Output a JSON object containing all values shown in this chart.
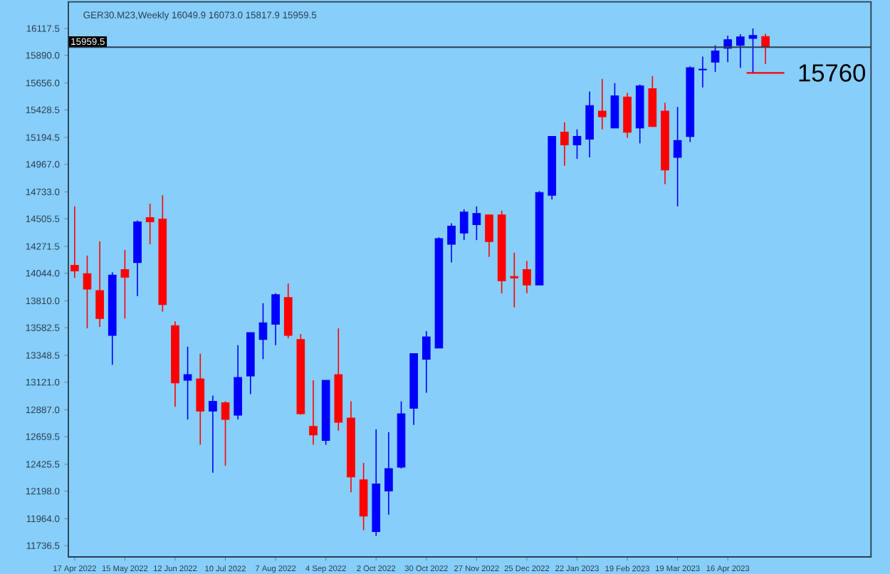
{
  "chart_data": {
    "type": "candlestick",
    "title": "GER30.M23,Weekly  16049.9 16073.0 15817.9 15959.5",
    "categories": [
      "17 Apr 2022",
      null,
      null,
      null,
      "15 May 2022",
      null,
      null,
      null,
      "12 Jun 2022",
      null,
      null,
      null,
      "10 Jul 2022",
      null,
      null,
      null,
      "7 Aug 2022",
      null,
      null,
      null,
      "4 Sep 2022",
      null,
      null,
      null,
      "2 Oct 2022",
      null,
      null,
      null,
      "30 Oct 2022",
      null,
      null,
      null,
      "27 Nov 2022",
      null,
      null,
      null,
      "25 Dec 2022",
      null,
      null,
      null,
      "22 Jan 2023",
      null,
      null,
      null,
      "19 Feb 2023",
      null,
      null,
      null,
      "19 Mar 2023",
      null,
      null,
      null,
      "16 Apr 2023",
      null,
      null,
      null
    ],
    "ohlc": [
      [
        14111,
        14610,
        14004,
        14064
      ],
      [
        14040,
        14194,
        13577,
        13909
      ],
      [
        13897,
        14313,
        13589,
        13660
      ],
      [
        13517,
        14052,
        13268,
        14028
      ],
      [
        14075,
        14242,
        13660,
        14010
      ],
      [
        14135,
        14491,
        13850,
        14479
      ],
      [
        14515,
        14633,
        14289,
        14479
      ],
      [
        14503,
        14705,
        13719,
        13779
      ],
      [
        13600,
        13636,
        12912,
        13114
      ],
      [
        13137,
        13422,
        12805,
        13185
      ],
      [
        13149,
        13363,
        12591,
        12876
      ],
      [
        12876,
        13007,
        12354,
        12959
      ],
      [
        12947,
        12959,
        12413,
        12805
      ],
      [
        12841,
        13434,
        12805,
        13161
      ],
      [
        13173,
        13541,
        13019,
        13541
      ],
      [
        13482,
        13790,
        13316,
        13624
      ],
      [
        13612,
        13874,
        13434,
        13862
      ],
      [
        13838,
        13957,
        13494,
        13517
      ],
      [
        13482,
        13529,
        12847,
        12853
      ],
      [
        12746,
        13137,
        12591,
        12674
      ],
      [
        12627,
        13137,
        12591,
        13137
      ],
      [
        13185,
        13577,
        12710,
        12781
      ],
      [
        12817,
        12959,
        12188,
        12318
      ],
      [
        12294,
        12437,
        11867,
        11986
      ],
      [
        11855,
        12722,
        11819,
        12259
      ],
      [
        12199,
        12698,
        11998,
        12389
      ],
      [
        12401,
        12959,
        12389,
        12853
      ],
      [
        12900,
        13363,
        12758,
        13363
      ],
      [
        13316,
        13553,
        13031,
        13505
      ],
      [
        13410,
        14348,
        13410,
        14337
      ],
      [
        14289,
        14467,
        14135,
        14443
      ],
      [
        14384,
        14586,
        14325,
        14562
      ],
      [
        14455,
        14610,
        14325,
        14550
      ],
      [
        14538,
        14538,
        14182,
        14313
      ],
      [
        14538,
        14574,
        13874,
        13980
      ],
      [
        14016,
        14218,
        13755,
        14004
      ],
      [
        14075,
        14147,
        13874,
        13945
      ],
      [
        13945,
        14740,
        13945,
        14728
      ],
      [
        14705,
        15203,
        14669,
        15203
      ],
      [
        15239,
        15322,
        14954,
        15132
      ],
      [
        15132,
        15263,
        15013,
        15203
      ],
      [
        15180,
        15583,
        15025,
        15465
      ],
      [
        15417,
        15690,
        15263,
        15370
      ],
      [
        15275,
        15655,
        15275,
        15548
      ],
      [
        15536,
        15571,
        15191,
        15239
      ],
      [
        15275,
        15643,
        15144,
        15631
      ],
      [
        15607,
        15714,
        15286,
        15286
      ],
      [
        15417,
        15488,
        14800,
        14918
      ],
      [
        15025,
        15453,
        14610,
        15168
      ],
      [
        15203,
        15797,
        15156,
        15785
      ],
      [
        15767,
        15880,
        15619,
        15773
      ],
      [
        15833,
        15975,
        15750,
        15928
      ],
      [
        15951,
        16058,
        15833,
        16023
      ],
      [
        15975,
        16070,
        15785,
        16046
      ],
      [
        16034,
        16118,
        15738,
        16058
      ],
      [
        16049.9,
        16073.0,
        15817.9,
        15959.5
      ]
    ],
    "colors": [
      "#ff0000",
      "#ff0000",
      "#ff0000",
      "#0000ff",
      "#ff0000",
      "#0000ff",
      "#ff0000",
      "#ff0000",
      "#ff0000",
      "#0000ff",
      "#ff0000",
      "#0000ff",
      "#ff0000",
      "#0000ff",
      "#0000ff",
      "#0000ff",
      "#0000ff",
      "#ff0000",
      "#ff0000",
      "#ff0000",
      "#0000ff",
      "#ff0000",
      "#ff0000",
      "#ff0000",
      "#0000ff",
      "#0000ff",
      "#0000ff",
      "#0000ff",
      "#0000ff",
      "#0000ff",
      "#0000ff",
      "#0000ff",
      "#0000ff",
      "#ff0000",
      "#ff0000",
      "#ff0000",
      "#ff0000",
      "#0000ff",
      "#0000ff",
      "#ff0000",
      "#0000ff",
      "#0000ff",
      "#ff0000",
      "#0000ff",
      "#ff0000",
      "#0000ff",
      "#ff0000",
      "#ff0000",
      "#0000ff",
      "#0000ff",
      "#0000ff",
      "#0000ff",
      "#0000ff",
      "#0000ff",
      "#0000ff",
      "#ff0000"
    ],
    "ylim": [
      11641,
      16343
    ],
    "yticks": [
      {
        "value": 16117.5,
        "label": "16117.5"
      },
      {
        "value": 15890,
        "label": "15890.0"
      },
      {
        "value": 15656,
        "label": "15656.0"
      },
      {
        "value": 15428.5,
        "label": "15428.5"
      },
      {
        "value": 15194.5,
        "label": "15194.5"
      },
      {
        "value": 14967,
        "label": "14967.0"
      },
      {
        "value": 14733,
        "label": "14733.0"
      },
      {
        "value": 14505.5,
        "label": "14505.5"
      },
      {
        "value": 14271.5,
        "label": "14271.5"
      },
      {
        "value": 14044,
        "label": "14044.0"
      },
      {
        "value": 13810,
        "label": "13810.0"
      },
      {
        "value": 13582.5,
        "label": "13582.5"
      },
      {
        "value": 13348.5,
        "label": "13348.5"
      },
      {
        "value": 13121,
        "label": "13121.0"
      },
      {
        "value": 12887,
        "label": "12887.0"
      },
      {
        "value": 12659.5,
        "label": "12659.5"
      },
      {
        "value": 12425.5,
        "label": "12425.5"
      },
      {
        "value": 12198,
        "label": "12198.0"
      },
      {
        "value": 11964,
        "label": "11964.0"
      },
      {
        "value": 11736.5,
        "label": "11736.5"
      }
    ],
    "ref_lines": [
      {
        "axis": "y",
        "value": 15959.5,
        "label": "15959.5",
        "color": "#2b3f4f"
      }
    ],
    "annotations": [
      "15760"
    ]
  }
}
